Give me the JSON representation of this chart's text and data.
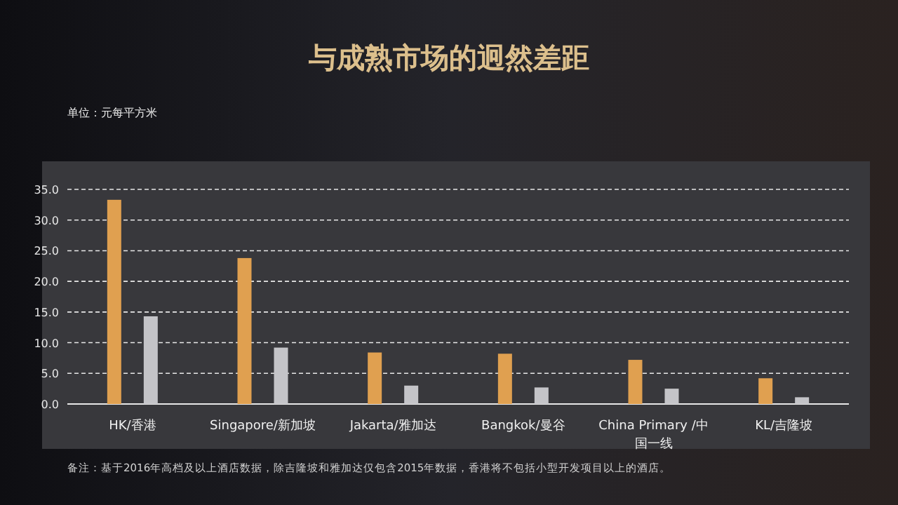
{
  "chart_data": {
    "type": "bar",
    "title": "与成熟市场的迥然差距",
    "categories": [
      "HK/香港",
      "Singapore/新加坡",
      "Jakarta/雅加达",
      "Bangkok/曼谷",
      "China Primary /中国一线",
      "KL/吉隆坡"
    ],
    "series": [
      {
        "color": "#e0a050",
        "values": [
          33.3,
          23.8,
          8.4,
          8.2,
          7.2,
          4.2
        ]
      },
      {
        "color": "#c4c4c8",
        "values": [
          14.3,
          9.2,
          3.0,
          2.7,
          2.5,
          1.1
        ]
      }
    ],
    "ylim": [
      0,
      35
    ],
    "yticks": [
      {
        "value": 0,
        "label": "0.0"
      },
      {
        "value": 5,
        "label": "5.0"
      },
      {
        "value": 10,
        "label": "10.0"
      },
      {
        "value": 15,
        "label": "15.0"
      },
      {
        "value": 20,
        "label": "20.0"
      },
      {
        "value": 25,
        "label": "25.0"
      },
      {
        "value": 30,
        "label": "30.0"
      },
      {
        "value": 35,
        "label": "35.0"
      }
    ],
    "grid": "y",
    "annotations": [
      "单位：元每平方米",
      "备注：基于2016年高档及以上酒店数据，除吉隆坡和雅加达仅包含2015年数据，香港将不包括小型开发项目以上的酒店。"
    ]
  }
}
